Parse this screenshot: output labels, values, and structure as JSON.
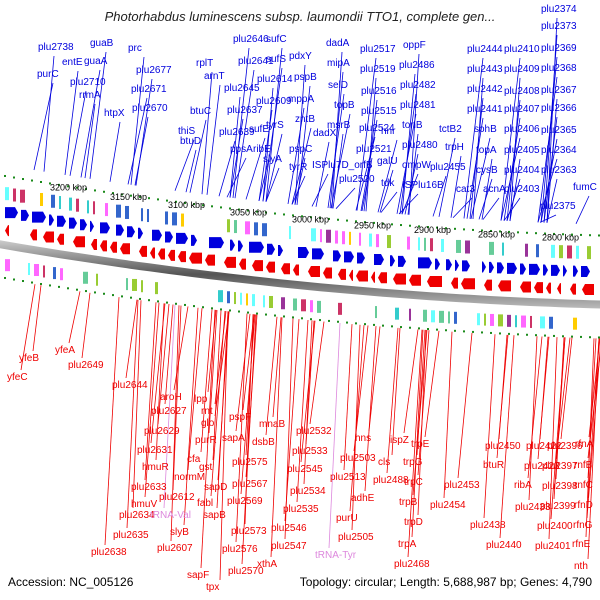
{
  "title": "Photorhabdus luminescens subsp. laumondii TTO1, complete gen...",
  "footer": {
    "accession": "Accession: NC_005126",
    "summary": "Topology: circular; Length: 5,688,987 bp; Genes: 4,790"
  },
  "colors": {
    "forward_strand": "#0000dd",
    "reverse_strand": "#ee0000",
    "rna_label": "#dd88dd",
    "backbone": "#888888",
    "tick": "#1a8a1a"
  },
  "scale_labels": [
    "3200 kbp",
    "3150 kbp",
    "3100 kbp",
    "3050 kbp",
    "3000 kbp",
    "2950 kbp",
    "2900 kbp",
    "2850 kbp",
    "2800 kbp"
  ],
  "top_labels": [
    {
      "text": "plu2374"
    },
    {
      "text": "plu2373"
    },
    {
      "text": "plu2369"
    },
    {
      "text": "plu2368"
    },
    {
      "text": "plu2367"
    },
    {
      "text": "plu2366"
    },
    {
      "text": "plu2365"
    },
    {
      "text": "plu2364"
    },
    {
      "text": "plu2363"
    },
    {
      "text": "fumC"
    },
    {
      "text": "plu2375"
    },
    {
      "text": "plu2410"
    },
    {
      "text": "plu2409"
    },
    {
      "text": "plu2408"
    },
    {
      "text": "plu2407"
    },
    {
      "text": "plu2406"
    },
    {
      "text": "plu2405"
    },
    {
      "text": "plu2404"
    },
    {
      "text": "plu2403"
    },
    {
      "text": "plu2444"
    },
    {
      "text": "plu2443"
    },
    {
      "text": "plu2442"
    },
    {
      "text": "plu2441"
    },
    {
      "text": "sohB"
    },
    {
      "text": "topA"
    },
    {
      "text": "cysB"
    },
    {
      "text": "acnA"
    },
    {
      "text": "cat3"
    },
    {
      "text": "oppF"
    },
    {
      "text": "plu2486"
    },
    {
      "text": "plu2482"
    },
    {
      "text": "plu2481"
    },
    {
      "text": "tonB"
    },
    {
      "text": "plu2480"
    },
    {
      "text": "ompW"
    },
    {
      "text": "ISPlu16B"
    },
    {
      "text": "trpH"
    },
    {
      "text": "plu2455"
    },
    {
      "text": "tctB2"
    },
    {
      "text": "plu2517"
    },
    {
      "text": "plu2519"
    },
    {
      "text": "plu2516"
    },
    {
      "text": "plu2515"
    },
    {
      "text": "hnr"
    },
    {
      "text": "plu2521"
    },
    {
      "text": "galU"
    },
    {
      "text": "tdk"
    },
    {
      "text": "plu2524"
    },
    {
      "text": "dadA"
    },
    {
      "text": "mipA"
    },
    {
      "text": "selD"
    },
    {
      "text": "topB"
    },
    {
      "text": "msrB"
    },
    {
      "text": "dadX"
    },
    {
      "text": "ISPlu7D_orfB"
    },
    {
      "text": "plu2520"
    },
    {
      "text": "pdxY"
    },
    {
      "text": "pspB"
    },
    {
      "text": "mppA"
    },
    {
      "text": "zntB"
    },
    {
      "text": "pspC"
    },
    {
      "text": "tyrR"
    },
    {
      "text": "sufC"
    },
    {
      "text": "sufS"
    },
    {
      "text": "plu2614"
    },
    {
      "text": "plu2609"
    },
    {
      "text": "tyrS"
    },
    {
      "text": "sufE"
    },
    {
      "text": "ribE"
    },
    {
      "text": "slyA"
    },
    {
      "text": "plu2646"
    },
    {
      "text": "plu2641"
    },
    {
      "text": "plu2645"
    },
    {
      "text": "plu2637"
    },
    {
      "text": "plu2639"
    },
    {
      "text": "ppsA"
    },
    {
      "text": "rplT"
    },
    {
      "text": "arnT"
    },
    {
      "text": "btuC"
    },
    {
      "text": "thiS"
    },
    {
      "text": "btuD"
    },
    {
      "text": "plu2670"
    },
    {
      "text": "plu2677"
    },
    {
      "text": "plu2671"
    },
    {
      "text": "htpX"
    },
    {
      "text": "prc"
    },
    {
      "text": "guaB"
    },
    {
      "text": "guaA"
    },
    {
      "text": "rrmA"
    },
    {
      "text": "entE"
    },
    {
      "text": "plu2710"
    },
    {
      "text": "purC"
    },
    {
      "text": "plu2738"
    }
  ],
  "bottom_labels": [
    {
      "text": "yfeB"
    },
    {
      "text": "yfeA"
    },
    {
      "text": "yfeC"
    },
    {
      "text": "plu2649"
    },
    {
      "text": "plu2644"
    },
    {
      "text": "aroH"
    },
    {
      "text": "plu2627"
    },
    {
      "text": "plu2629"
    },
    {
      "text": "plu2631"
    },
    {
      "text": "hmuR"
    },
    {
      "text": "plu2633"
    },
    {
      "text": "hmuV"
    },
    {
      "text": "plu2634"
    },
    {
      "text": "plu2635"
    },
    {
      "text": "plu2638"
    },
    {
      "text": "lpp"
    },
    {
      "text": "rnt"
    },
    {
      "text": "glo"
    },
    {
      "text": "purR"
    },
    {
      "text": "cfa"
    },
    {
      "text": "normM"
    },
    {
      "text": "plu2612"
    },
    {
      "text": "tRNA-Val"
    },
    {
      "text": "slyB"
    },
    {
      "text": "plu2607"
    },
    {
      "text": "sapB"
    },
    {
      "text": "fabl"
    },
    {
      "text": "gst"
    },
    {
      "text": "sapD"
    },
    {
      "text": "sapF"
    },
    {
      "text": "tpx"
    },
    {
      "text": "pspF"
    },
    {
      "text": "sapA"
    },
    {
      "text": "plu2575"
    },
    {
      "text": "plu2567"
    },
    {
      "text": "plu2569"
    },
    {
      "text": "plu2573"
    },
    {
      "text": "plu2576"
    },
    {
      "text": "plu2570"
    },
    {
      "text": "mnaB"
    },
    {
      "text": "dsbB"
    },
    {
      "text": "plu2545"
    },
    {
      "text": "plu2534"
    },
    {
      "text": "plu2535"
    },
    {
      "text": "plu2546"
    },
    {
      "text": "plu2547"
    },
    {
      "text": "xthA"
    },
    {
      "text": "plu2532"
    },
    {
      "text": "plu2533"
    },
    {
      "text": "hns"
    },
    {
      "text": "plu2503"
    },
    {
      "text": "plu2513"
    },
    {
      "text": "adhE"
    },
    {
      "text": "purU"
    },
    {
      "text": "plu2505"
    },
    {
      "text": "tRNA-Tyr"
    },
    {
      "text": "ispZ"
    },
    {
      "text": "cls"
    },
    {
      "text": "plu2488"
    },
    {
      "text": "trpE"
    },
    {
      "text": "trpG"
    },
    {
      "text": "trpC"
    },
    {
      "text": "trpB"
    },
    {
      "text": "trpD"
    },
    {
      "text": "trpA"
    },
    {
      "text": "plu2468"
    },
    {
      "text": "plu2450"
    },
    {
      "text": "btuR"
    },
    {
      "text": "plu2453"
    },
    {
      "text": "plu2454"
    },
    {
      "text": "plu2438"
    },
    {
      "text": "plu2440"
    },
    {
      "text": "plu2422"
    },
    {
      "text": "plu2423"
    },
    {
      "text": "ribA"
    },
    {
      "text": "plu2433"
    },
    {
      "text": "plu2396"
    },
    {
      "text": "plu2397"
    },
    {
      "text": "plu2398"
    },
    {
      "text": "plu2399"
    },
    {
      "text": "plu2400"
    },
    {
      "text": "plu2401"
    },
    {
      "text": "rfnA"
    },
    {
      "text": "rnfB"
    },
    {
      "text": "rnfC"
    },
    {
      "text": "rfnD"
    },
    {
      "text": "rfnG"
    },
    {
      "text": "rfnE"
    },
    {
      "text": "nth"
    }
  ]
}
